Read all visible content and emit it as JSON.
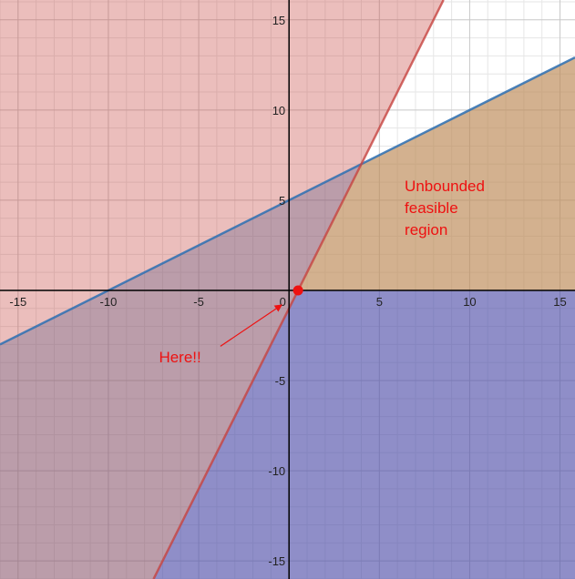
{
  "chart_data": {
    "type": "area",
    "title": "",
    "xlabel": "",
    "ylabel": "",
    "xlim": [
      -16,
      15.83
    ],
    "ylim": [
      -16,
      16.1
    ],
    "grid": true,
    "x_ticks": [
      -15,
      -10,
      -5,
      0,
      5,
      10,
      15
    ],
    "x_tick_labels": [
      "-15",
      "-10",
      "-5",
      "0",
      "5",
      "10",
      "15"
    ],
    "y_ticks": [
      -15,
      -10,
      -5,
      5,
      10,
      15
    ],
    "y_tick_labels": [
      "-15",
      "-10",
      "-5",
      "5",
      "10",
      "15"
    ],
    "regions": [
      {
        "id": "blue",
        "color": "#2d70b3",
        "boundary": {
          "slope": 0.5,
          "intercept": 5
        },
        "shade": "below"
      },
      {
        "id": "red",
        "color": "#c74440",
        "boundary": {
          "slope": 2,
          "intercept": -1
        },
        "shade": "above-left"
      },
      {
        "id": "purple",
        "color": "#6042a6",
        "boundary": {
          "slope": 2,
          "intercept": -1
        },
        "shade": "below-right"
      },
      {
        "id": "orange",
        "color": "#f0963a",
        "vertices": [
          [
            0.5,
            0
          ],
          [
            4,
            7
          ],
          [
            15.83,
            12.92
          ],
          [
            15.83,
            0
          ]
        ]
      }
    ],
    "points": [
      {
        "x": 0.5,
        "y": 0,
        "color": "#ee1111"
      }
    ],
    "annotations": [
      {
        "lines": [
          "Unbounded",
          "feasible",
          "region"
        ],
        "x": 6.4,
        "y": 5.5,
        "color": "#ee1111"
      },
      {
        "lines": [
          "Here!!"
        ],
        "x": -7.2,
        "y": -4,
        "color": "#ee1111",
        "arrow_from": [
          -3.8,
          -3.1
        ],
        "arrow_to": [
          -0.4,
          -0.8
        ]
      }
    ]
  }
}
